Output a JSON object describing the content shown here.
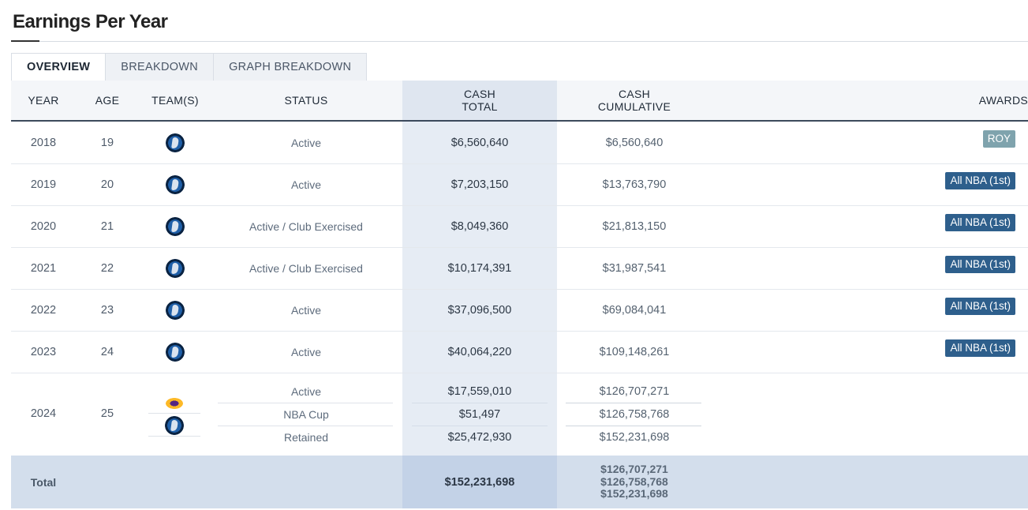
{
  "title": "Earnings Per Year",
  "tabs": [
    {
      "label": "OVERVIEW",
      "active": true
    },
    {
      "label": "BREAKDOWN",
      "active": false
    },
    {
      "label": "GRAPH BREAKDOWN",
      "active": false
    }
  ],
  "headers": {
    "year": "YEAR",
    "age": "AGE",
    "teams": "TEAM(S)",
    "status": "STATUS",
    "cash_total_1": "CASH",
    "cash_total_2": "TOTAL",
    "cash_cum_1": "CASH",
    "cash_cum_2": "CUMULATIVE",
    "awards": "AWARDS"
  },
  "rows": [
    {
      "year": "2018",
      "age": "19",
      "team_icon": "mavericks-logo-icon",
      "status": "Active",
      "cash_total": "$6,560,640",
      "cash_cumulative": "$6,560,640",
      "award": "ROY"
    },
    {
      "year": "2019",
      "age": "20",
      "team_icon": "mavericks-logo-icon",
      "status": "Active",
      "cash_total": "$7,203,150",
      "cash_cumulative": "$13,763,790",
      "award": "All NBA (1st)"
    },
    {
      "year": "2020",
      "age": "21",
      "team_icon": "mavericks-logo-icon",
      "status": "Active / Club Exercised",
      "cash_total": "$8,049,360",
      "cash_cumulative": "$21,813,150",
      "award": "All NBA (1st)"
    },
    {
      "year": "2021",
      "age": "22",
      "team_icon": "mavericks-logo-icon",
      "status": "Active / Club Exercised",
      "cash_total": "$10,174,391",
      "cash_cumulative": "$31,987,541",
      "award": "All NBA (1st)"
    },
    {
      "year": "2022",
      "age": "23",
      "team_icon": "mavericks-logo-icon",
      "status": "Active",
      "cash_total": "$37,096,500",
      "cash_cumulative": "$69,084,041",
      "award": "All NBA (1st)"
    },
    {
      "year": "2023",
      "age": "24",
      "team_icon": "mavericks-logo-icon",
      "status": "Active",
      "cash_total": "$40,064,220",
      "cash_cumulative": "$109,148,261",
      "award": "All NBA (1st)"
    }
  ],
  "row_2024": {
    "year": "2024",
    "age": "25",
    "team_icons": [
      "lakers-logo-icon",
      "mavericks-logo-icon"
    ],
    "entries": [
      {
        "status": "Active",
        "cash_total": "$17,559,010",
        "cash_cumulative": "$126,707,271"
      },
      {
        "status": "NBA Cup",
        "cash_total": "$51,497",
        "cash_cumulative": "$126,758,768"
      },
      {
        "status": "Retained",
        "cash_total": "$25,472,930",
        "cash_cumulative": "$152,231,698"
      }
    ]
  },
  "total": {
    "label": "Total",
    "cash_total": "$152,231,698",
    "cumulative": [
      "$126,707,271",
      "$126,758,768",
      "$152,231,698"
    ]
  },
  "colors": {
    "roy_badge": "#7fa3ad",
    "allnba_badge": "#2e5f8c",
    "cash_column": "#e6ecf4",
    "total_row": "#d3deec"
  }
}
